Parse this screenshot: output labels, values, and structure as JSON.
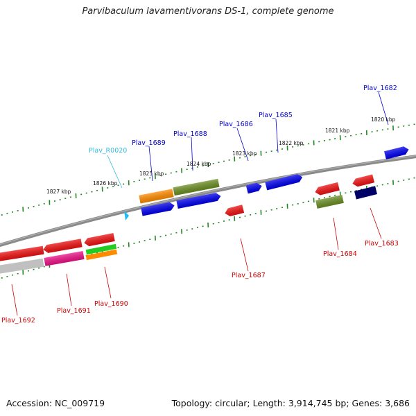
{
  "title": "Parvibaculum lavamentivorans DS-1, complete genome",
  "footer": {
    "accession": "Accession: NC_009719",
    "topology": "Topology: circular; Length: 3,914,745 bp; Genes: 3,686"
  },
  "colors": {
    "forward_label": "#0000cc",
    "reverse_label": "#cc0000",
    "rna_label": "#33bbdd",
    "backbone": "#808080",
    "ticks": "#228822",
    "gene_red": "#ee1111",
    "gene_blue": "#0000ee",
    "gene_olive": "#6b8e23",
    "gene_orange": "#ff8c00",
    "gene_green": "#22cc22",
    "gene_magenta": "#ee1188",
    "gene_navy": "#000066",
    "gene_gray": "#c0c0c0",
    "rna_marker": "#22bbee"
  },
  "scale_labels": [
    {
      "id": "kbp-1820",
      "text": "1820 kbp"
    },
    {
      "id": "kbp-1821",
      "text": "1821 kbp"
    },
    {
      "id": "kbp-1822",
      "text": "1822 kbp"
    },
    {
      "id": "kbp-1823",
      "text": "1823 kbp"
    },
    {
      "id": "kbp-1824",
      "text": "1824 kbp"
    },
    {
      "id": "kbp-1825",
      "text": "1825 kbp"
    },
    {
      "id": "kbp-1826",
      "text": "1826 kbp"
    },
    {
      "id": "kbp-1827",
      "text": "1827 kbp"
    }
  ],
  "genes": {
    "forward": [
      "Plav_1682",
      "Plav_1685",
      "Plav_1686",
      "Plav_1688",
      "Plav_1689"
    ],
    "rna": [
      "Plav_R0020"
    ],
    "reverse": [
      "Plav_1683",
      "Plav_1684",
      "Plav_1687",
      "Plav_1690",
      "Plav_1691",
      "Plav_1692"
    ]
  }
}
